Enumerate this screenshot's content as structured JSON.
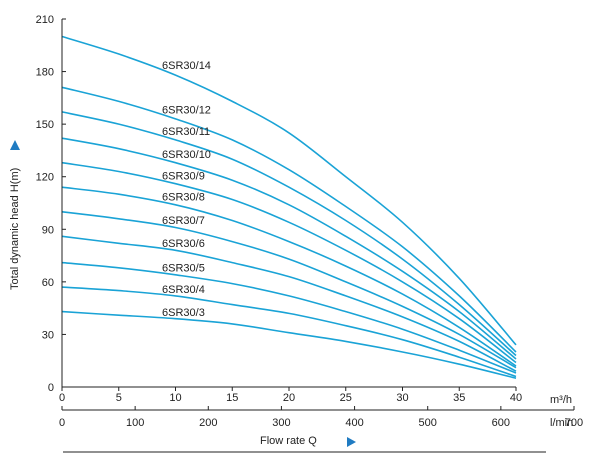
{
  "chart_data": {
    "type": "line",
    "title": "",
    "xlabel": "Flow rate Q",
    "xunit": "m³/h",
    "x2unit": "l/min",
    "ylabel": "Total dynamic head H(m)",
    "xlim": [
      0,
      40
    ],
    "ylim": [
      0,
      210
    ],
    "x2lim": [
      0,
      700
    ],
    "x_ticks": [
      "0",
      "5",
      "10",
      "15",
      "20",
      "25",
      "30",
      "35",
      "40"
    ],
    "x2_ticks": [
      "0",
      "100",
      "200",
      "300",
      "400",
      "500",
      "600",
      "700"
    ],
    "y_ticks": [
      "0",
      "30",
      "60",
      "90",
      "120",
      "150",
      "180",
      "210"
    ],
    "x": [
      0,
      5,
      10,
      15,
      20,
      25,
      30,
      35,
      40
    ],
    "series": [
      {
        "name": "6SR30/14",
        "values": [
          200,
          190,
          178,
          163,
          145,
          120,
          94,
          62,
          24
        ]
      },
      {
        "name": "6SR30/12",
        "values": [
          171,
          163,
          153,
          141,
          124,
          103,
          80,
          52,
          20
        ]
      },
      {
        "name": "6SR30/11",
        "values": [
          157,
          150,
          141,
          130,
          114,
          95,
          73,
          47,
          18
        ]
      },
      {
        "name": "6SR30/10",
        "values": [
          142,
          136,
          128,
          118,
          104,
          86,
          66,
          43,
          16
        ]
      },
      {
        "name": "6SR30/9",
        "values": [
          128,
          123,
          116,
          107,
          94,
          78,
          60,
          39,
          14
        ]
      },
      {
        "name": "6SR30/8",
        "values": [
          114,
          110,
          104,
          95,
          83,
          69,
          53,
          34,
          12
        ]
      },
      {
        "name": "6SR30/7",
        "values": [
          100,
          96,
          91,
          83,
          73,
          60,
          46,
          30,
          11
        ]
      },
      {
        "name": "6SR30/6",
        "values": [
          86,
          82,
          78,
          71,
          63,
          52,
          40,
          26,
          9
        ]
      },
      {
        "name": "6SR30/5",
        "values": [
          71,
          68,
          64,
          59,
          52,
          43,
          33,
          21,
          8
        ]
      },
      {
        "name": "6SR30/4",
        "values": [
          57,
          55,
          52,
          47,
          42,
          35,
          27,
          17,
          6
        ]
      },
      {
        "name": "6SR30/3",
        "values": [
          43,
          41,
          39,
          36,
          31,
          26,
          20,
          13,
          5
        ]
      }
    ],
    "line_color": "#1aa3d6",
    "marker_color": "#1f7bc2",
    "grid": false
  }
}
